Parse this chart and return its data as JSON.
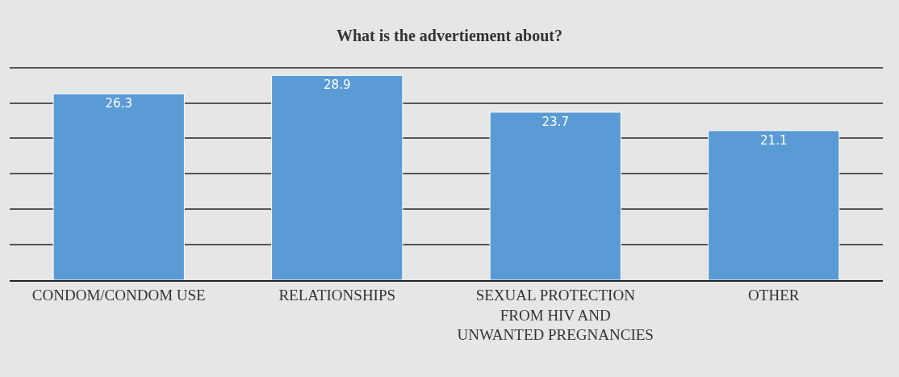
{
  "chart_data": {
    "type": "bar",
    "title": "What is the advertiement about?",
    "categories": [
      "CONDOM/CONDOM USE",
      "RELATIONSHIPS",
      "SEXUAL PROTECTION FROM HIV AND UNWANTED PREGNANCIES",
      "OTHER"
    ],
    "values": [
      26.3,
      28.9,
      23.7,
      21.1
    ],
    "color": "#5b9bd5",
    "yticks": [
      {
        "value": 0,
        "label": null
      },
      {
        "value": 5,
        "label": null
      },
      {
        "value": 10,
        "label": null
      },
      {
        "value": 15,
        "label": null
      },
      {
        "value": 20,
        "label": null
      },
      {
        "value": 25,
        "label": null
      },
      {
        "value": 30,
        "label": null
      }
    ],
    "tick_labels": "x",
    "grid": "y",
    "data_labels": true
  }
}
